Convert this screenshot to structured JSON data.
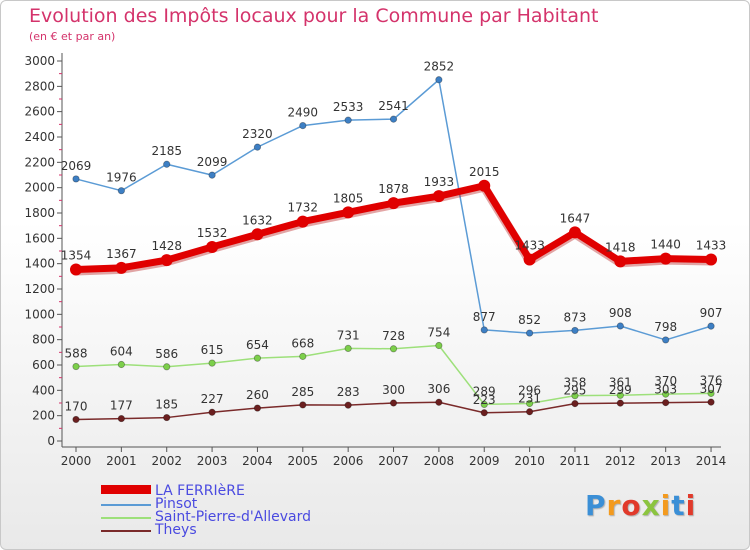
{
  "title": "Evolution des Impôts locaux pour la Commune par Habitant",
  "subtitle": "(en € et par an)",
  "logo": {
    "text": "Proxiti",
    "colors": [
      "#3b8fd6",
      "#f39a1e",
      "#e13a2b",
      "#8bc43f",
      "#f39a1e",
      "#3b8fd6",
      "#e13a2b"
    ]
  },
  "chart_data": {
    "type": "line",
    "title": "Evolution des Impôts locaux pour la Commune par Habitant",
    "subtitle": "(en € et par an)",
    "x": [
      "2000",
      "2001",
      "2002",
      "2003",
      "2004",
      "2005",
      "2006",
      "2007",
      "2008",
      "2009",
      "2010",
      "2011",
      "2012",
      "2013",
      "2014"
    ],
    "ylim": [
      0,
      3000
    ],
    "yticks": [
      0,
      200,
      400,
      600,
      800,
      1000,
      1200,
      1400,
      1600,
      1800,
      2000,
      2200,
      2400,
      2600,
      2800,
      3000
    ],
    "grid": false,
    "legend_position": "bottom-left",
    "series": [
      {
        "name": "Pinsot",
        "color": "#5b9bd5",
        "marker": "#3d7fc4",
        "values": [
          2069,
          1976,
          2185,
          2099,
          2320,
          2490,
          2533,
          2541,
          2852,
          877,
          852,
          873,
          908,
          798,
          907
        ]
      },
      {
        "name": "Saint-Pierre-d'Allevard",
        "color": "#9de07a",
        "marker": "#7ccf4a",
        "values": [
          588,
          604,
          586,
          615,
          654,
          668,
          731,
          728,
          754,
          289,
          296,
          358,
          361,
          370,
          376
        ]
      },
      {
        "name": "Theys",
        "color": "#7a2a2a",
        "marker": "#6b1f1f",
        "values": [
          170,
          177,
          185,
          227,
          260,
          285,
          283,
          300,
          306,
          223,
          231,
          295,
          299,
          303,
          307
        ]
      },
      {
        "name": "LA FERRIèRE",
        "color": "#e00000",
        "marker": "#e00000",
        "values": [
          1354,
          1367,
          1428,
          1532,
          1632,
          1732,
          1805,
          1878,
          1933,
          2015,
          1433,
          1647,
          1418,
          1440,
          1433
        ]
      }
    ]
  }
}
